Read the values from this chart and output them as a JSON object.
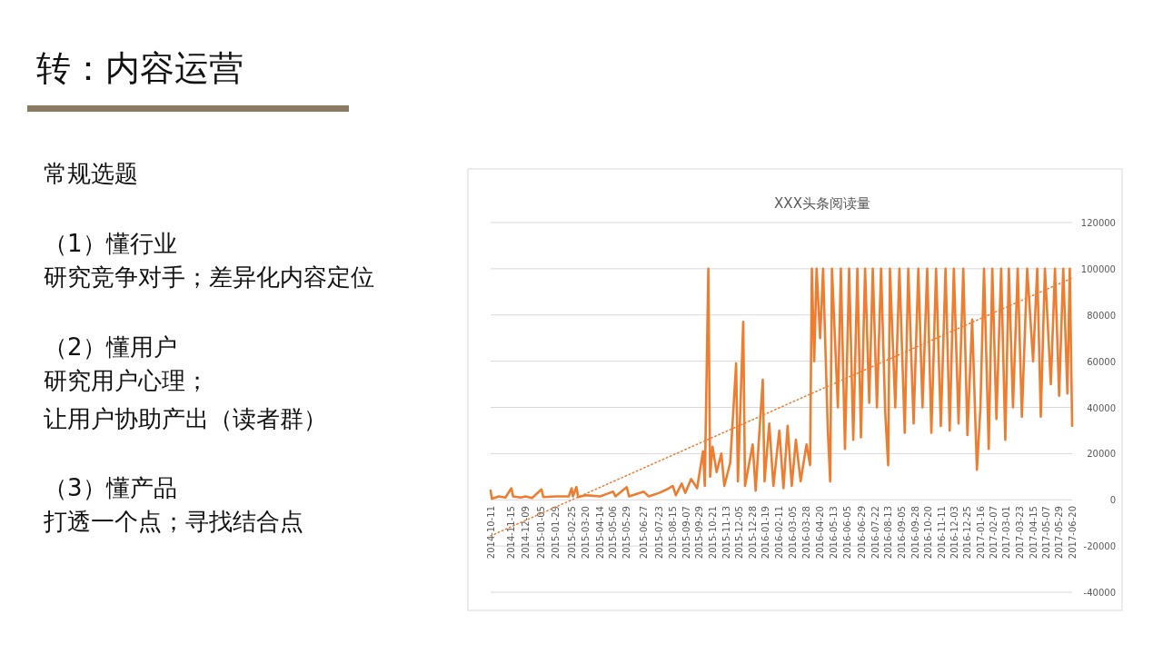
{
  "chart_data": {
    "type": "line",
    "title": "XXX头条阅读量",
    "annotations": [
      "转：内容运营",
      "常规选题",
      "（1）懂行业",
      "研究竞争对手；差异化内容定位",
      "（2）懂用户",
      "研究用户心理；",
      "让用户协助产出（读者群）",
      "（3）懂产品",
      "打透一个点；寻找结合点"
    ],
    "series": [
      {
        "color": "#ed7d31",
        "x": [
          "2014-10-11",
          "2014-10-13",
          "2014-10-25",
          "2014-11-05",
          "2014-11-15",
          "2014-11-18",
          "2014-12-01",
          "2014-12-09",
          "2014-12-20",
          "2015-01-05",
          "2015-01-08",
          "2015-01-29",
          "2015-02-20",
          "2015-02-25",
          "2015-02-27",
          "2015-03-05",
          "2015-03-08",
          "2015-03-20",
          "2015-04-14",
          "2015-04-25",
          "2015-05-06",
          "2015-05-10",
          "2015-05-29",
          "2015-06-02",
          "2015-06-27",
          "2015-07-05",
          "2015-07-23",
          "2015-08-05",
          "2015-08-15",
          "2015-08-20",
          "2015-08-30",
          "2015-09-05",
          "2015-09-15",
          "2015-09-25",
          "2015-10-05",
          "2015-10-08",
          "2015-10-14",
          "2015-10-17",
          "2015-10-21",
          "2015-10-28",
          "2015-11-05",
          "2015-11-10",
          "2015-11-20",
          "2015-11-30",
          "2015-12-03",
          "2015-12-12",
          "2015-12-15",
          "2015-12-28",
          "2016-01-02",
          "2016-01-14",
          "2016-01-17",
          "2016-01-25",
          "2016-02-01",
          "2016-02-11",
          "2016-02-18",
          "2016-02-25",
          "2016-03-03",
          "2016-03-10",
          "2016-03-18",
          "2016-03-28",
          "2016-04-03",
          "2016-04-06",
          "2016-04-10",
          "2016-04-14",
          "2016-04-20",
          "2016-04-25",
          "2016-05-03",
          "2016-05-07",
          "2016-05-10",
          "2016-05-20",
          "2016-05-25",
          "2016-06-01",
          "2016-06-08",
          "2016-06-15",
          "2016-06-22",
          "2016-06-28",
          "2016-07-05",
          "2016-07-12",
          "2016-07-18",
          "2016-07-25",
          "2016-08-01",
          "2016-08-08",
          "2016-08-13",
          "2016-08-16",
          "2016-08-25",
          "2016-09-01",
          "2016-09-10",
          "2016-09-16",
          "2016-09-25",
          "2016-10-03",
          "2016-10-10",
          "2016-10-18",
          "2016-10-25",
          "2016-11-02",
          "2016-11-10",
          "2016-11-18",
          "2016-11-25",
          "2016-12-02",
          "2016-12-10",
          "2016-12-18",
          "2016-12-25",
          "2017-01-02",
          "2017-01-10",
          "2017-01-16",
          "2017-01-22",
          "2017-01-30",
          "2017-02-05",
          "2017-02-12",
          "2017-02-20",
          "2017-02-27",
          "2017-03-05",
          "2017-03-12",
          "2017-03-20",
          "2017-03-27",
          "2017-04-05",
          "2017-04-15",
          "2017-04-22",
          "2017-04-28",
          "2017-05-05",
          "2017-05-15",
          "2017-05-22",
          "2017-05-29",
          "2017-06-05",
          "2017-06-12",
          "2017-06-16",
          "2017-06-20"
        ],
        "values": [
          4000,
          500,
          1500,
          1000,
          5000,
          1500,
          1000,
          1500,
          800,
          4500,
          1200,
          1500,
          1500,
          5000,
          1500,
          5500,
          1200,
          2000,
          1500,
          2500,
          3500,
          1500,
          5500,
          1500,
          3500,
          1500,
          3000,
          4500,
          6000,
          2000,
          7000,
          3000,
          9000,
          5000,
          21000,
          6000,
          100000,
          10000,
          23000,
          12000,
          20000,
          6000,
          16000,
          59000,
          8000,
          77000,
          6000,
          24000,
          4000,
          52000,
          8000,
          33000,
          6000,
          30000,
          5000,
          32000,
          6000,
          26000,
          8000,
          24000,
          15000,
          100000,
          60000,
          100000,
          70000,
          100000,
          30000,
          8000,
          100000,
          40000,
          100000,
          22000,
          100000,
          26000,
          100000,
          27000,
          100000,
          42000,
          100000,
          40000,
          100000,
          38000,
          15000,
          100000,
          40000,
          100000,
          29000,
          100000,
          33000,
          100000,
          40000,
          100000,
          29000,
          100000,
          32000,
          100000,
          30000,
          100000,
          33000,
          100000,
          28000,
          78000,
          13000,
          40000,
          100000,
          22000,
          100000,
          35000,
          100000,
          26000,
          100000,
          40000,
          100000,
          36000,
          100000,
          60000,
          100000,
          36000,
          100000,
          50000,
          100000,
          45000,
          100000,
          46000,
          100000,
          32000
        ]
      },
      {
        "type": "line",
        "color": "#ed7d31",
        "line_style": "dotted",
        "x": [
          "2014-10-11",
          "2017-06-20"
        ],
        "values": [
          -15600,
          96000
        ]
      }
    ],
    "xlim": [
      "2014-10-11",
      "2017-06-20"
    ],
    "xticks": [
      "2014-10-11",
      "2014-11-15",
      "2014-12-09",
      "2015-01-05",
      "2015-01-29",
      "2015-02-25",
      "2015-03-20",
      "2015-04-14",
      "2015-05-06",
      "2015-05-29",
      "2015-06-27",
      "2015-07-23",
      "2015-08-15",
      "2015-09-07",
      "2015-09-29",
      "2015-10-21",
      "2015-11-13",
      "2015-12-05",
      "2015-12-28",
      "2016-01-19",
      "2016-02-11",
      "2016-03-05",
      "2016-03-28",
      "2016-04-20",
      "2016-05-13",
      "2016-06-05",
      "2016-06-29",
      "2016-07-22",
      "2016-08-13",
      "2016-09-05",
      "2016-09-28",
      "2016-10-20",
      "2016-11-11",
      "2016-12-03",
      "2016-12-25",
      "2017-01-16",
      "2017-02-07",
      "2017-03-01",
      "2017-03-23",
      "2017-04-15",
      "2017-05-07",
      "2017-05-29",
      "2017-06-20"
    ],
    "ylim": [
      -40000,
      120000
    ],
    "yticks": [
      -40000,
      -20000,
      0,
      20000,
      40000,
      60000,
      80000,
      100000,
      120000
    ],
    "grid": "y"
  }
}
